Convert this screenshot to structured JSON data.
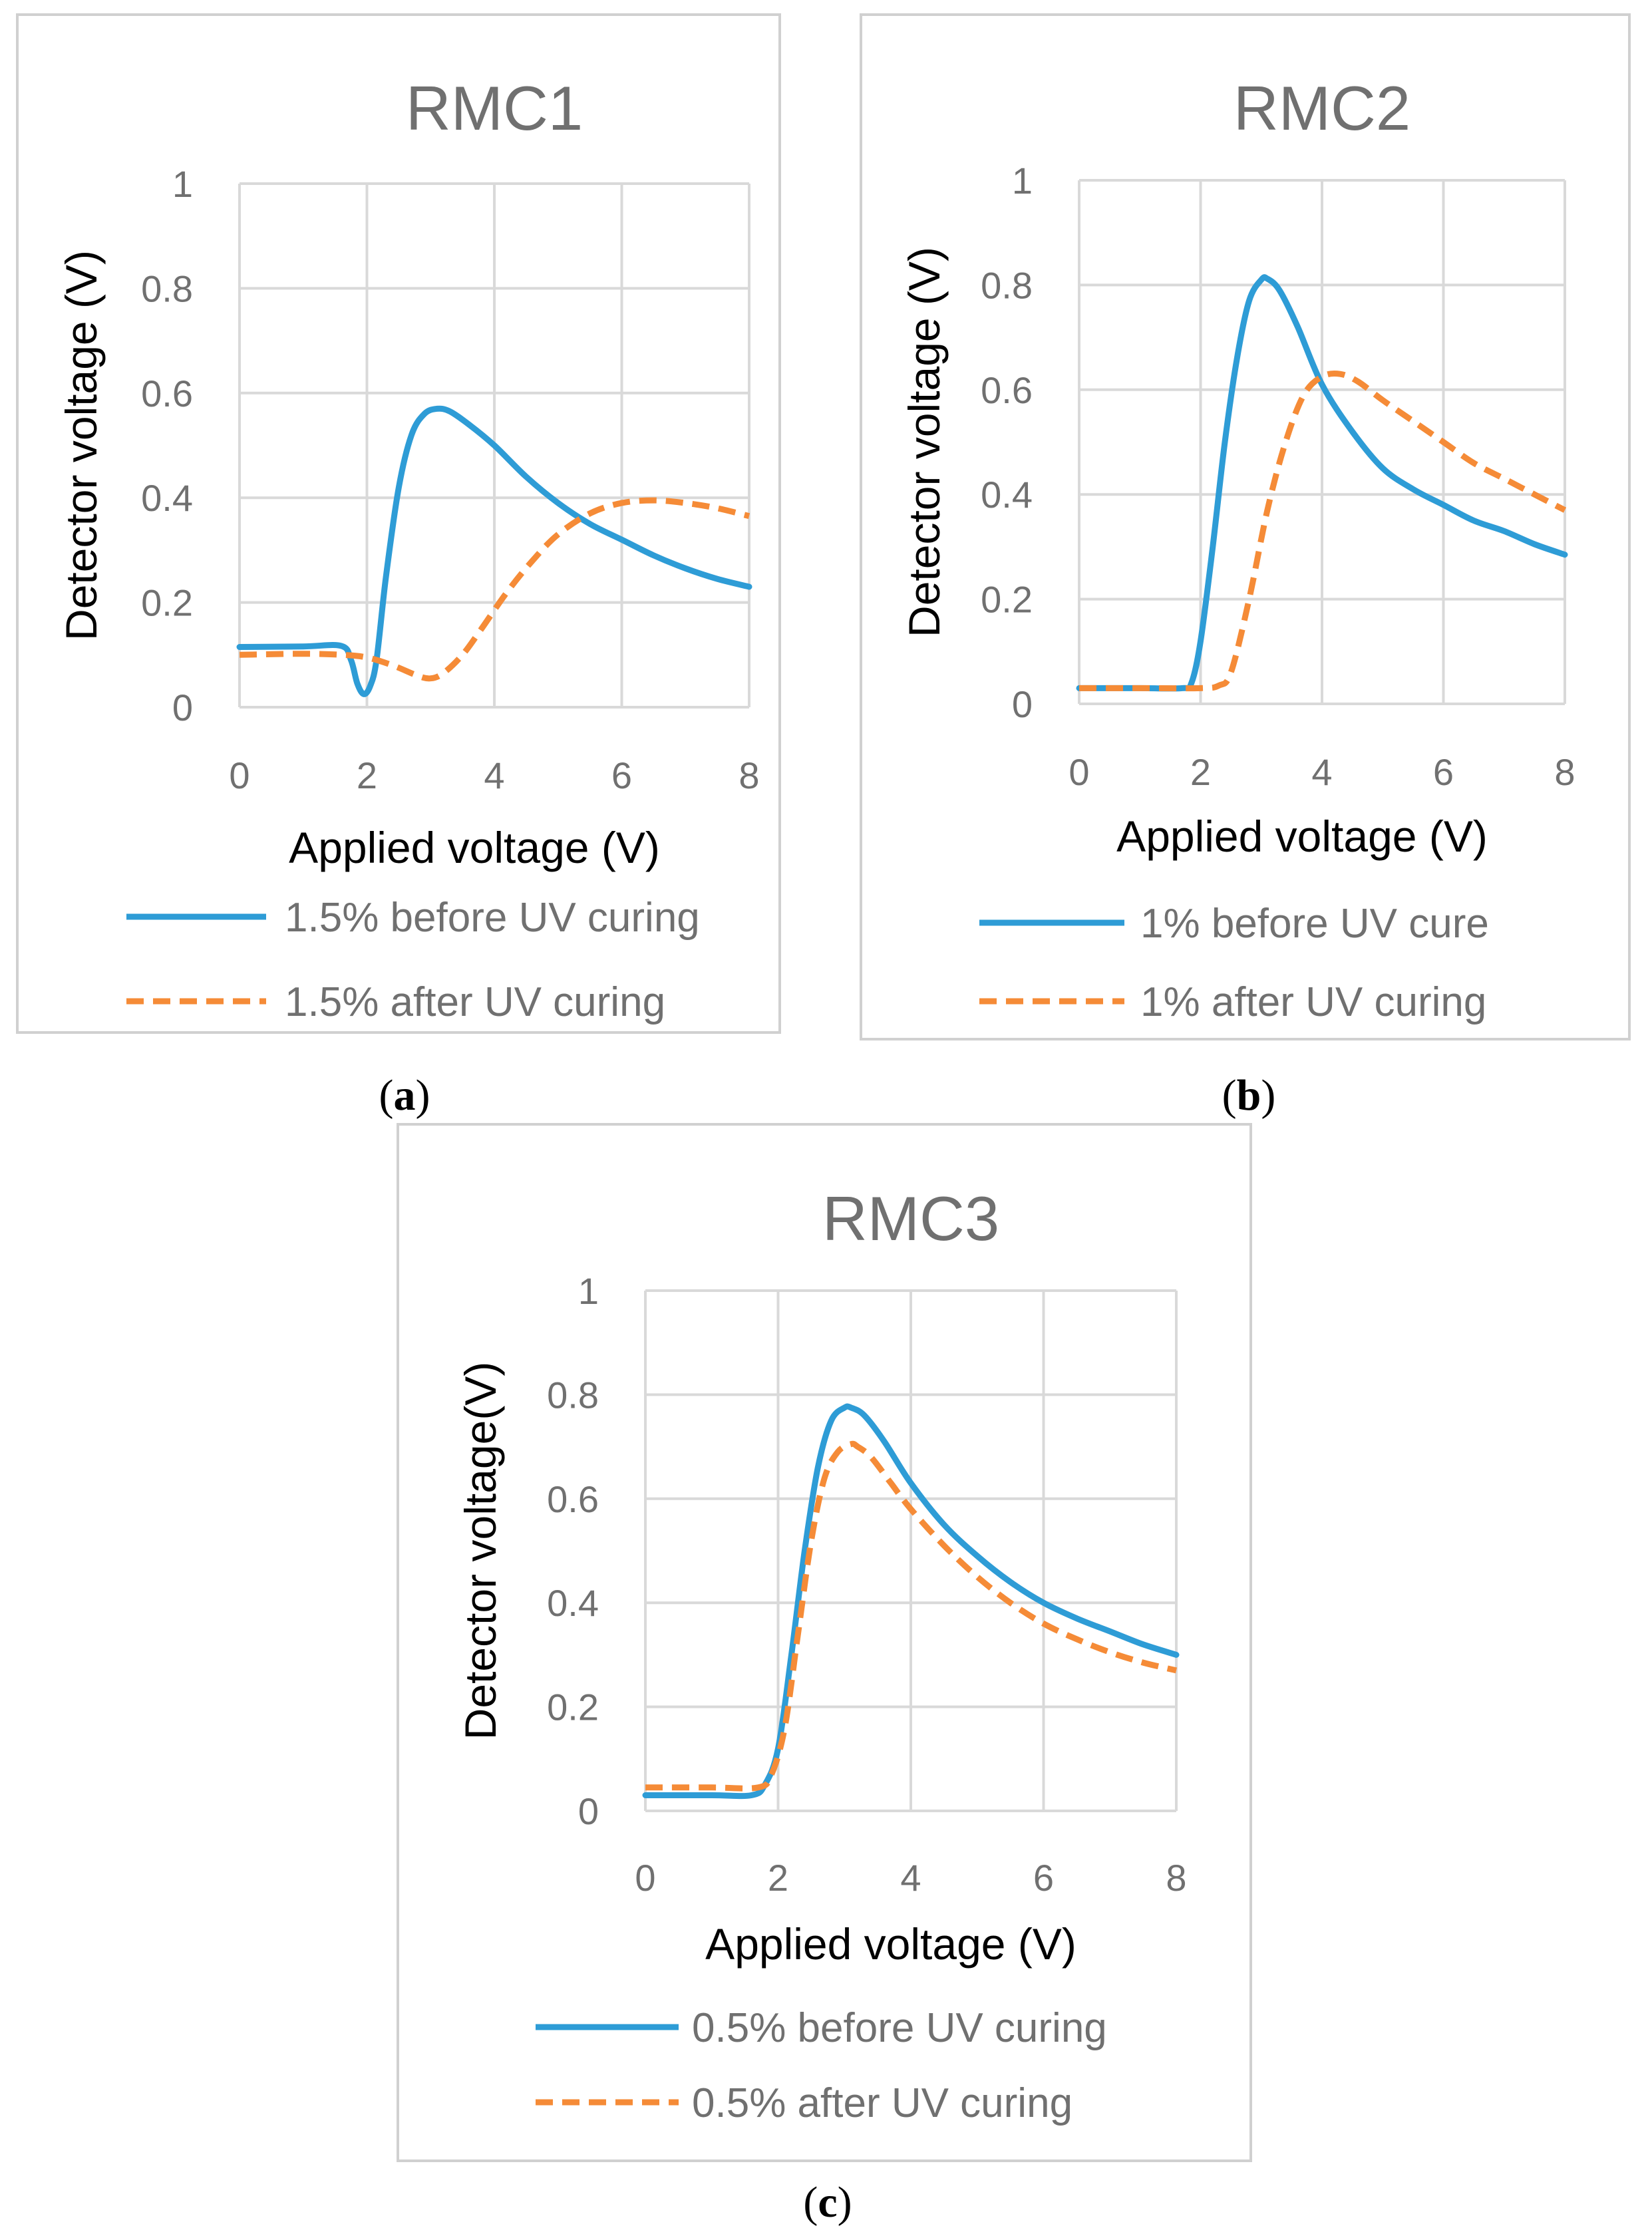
{
  "colors": {
    "before": "#2E9CD6",
    "after": "#F58B37",
    "grid": "#D9D9D9",
    "frame": "#D0D0D0"
  },
  "chart_data": [
    {
      "panel": "a",
      "type": "line",
      "title": "RMC1",
      "xlabel": "Applied voltage (V)",
      "ylabel": "Detector voltage (V)",
      "xlim": [
        0,
        8
      ],
      "ylim": [
        0,
        1
      ],
      "xticks": [
        "0",
        "2",
        "4",
        "6",
        "8"
      ],
      "yticks": [
        "0",
        "0.2",
        "0.4",
        "0.6",
        "0.8",
        "1"
      ],
      "series": [
        {
          "name": "1.5% before UV curing",
          "style": "solid",
          "x": [
            0,
            1.0,
            1.6,
            1.75,
            1.85,
            1.95,
            2.05,
            2.15,
            2.3,
            2.5,
            2.7,
            2.9,
            3.1,
            3.3,
            3.6,
            4.0,
            4.5,
            5.0,
            5.5,
            6.0,
            6.5,
            7.0,
            7.5,
            8.0
          ],
          "y": [
            0.115,
            0.116,
            0.117,
            0.09,
            0.045,
            0.025,
            0.04,
            0.09,
            0.25,
            0.42,
            0.52,
            0.56,
            0.57,
            0.565,
            0.54,
            0.5,
            0.44,
            0.39,
            0.35,
            0.32,
            0.29,
            0.265,
            0.245,
            0.23
          ]
        },
        {
          "name": "1.5% after UV curing",
          "style": "dashed",
          "x": [
            0,
            1.0,
            1.6,
            2.0,
            2.4,
            2.8,
            3.0,
            3.2,
            3.5,
            3.8,
            4.2,
            4.6,
            5.0,
            5.5,
            6.0,
            6.5,
            7.0,
            7.5,
            8.0
          ],
          "y": [
            0.1,
            0.102,
            0.1,
            0.095,
            0.08,
            0.06,
            0.055,
            0.065,
            0.1,
            0.15,
            0.22,
            0.28,
            0.33,
            0.37,
            0.39,
            0.395,
            0.39,
            0.38,
            0.365
          ]
        }
      ],
      "panel_label": "a"
    },
    {
      "panel": "b",
      "type": "line",
      "title": "RMC2",
      "xlabel": "Applied voltage (V)",
      "ylabel": "Detector voltage (V)",
      "xlim": [
        0,
        8
      ],
      "ylim": [
        0,
        1
      ],
      "xticks": [
        "0",
        "2",
        "4",
        "6",
        "8"
      ],
      "yticks": [
        "0",
        "0.2",
        "0.4",
        "0.6",
        "0.8",
        "1"
      ],
      "series": [
        {
          "name": "1% before UV cure",
          "style": "solid",
          "x": [
            0,
            1.0,
            1.7,
            1.85,
            2.0,
            2.2,
            2.4,
            2.6,
            2.8,
            3.0,
            3.1,
            3.3,
            3.6,
            4.0,
            4.5,
            5.0,
            5.5,
            6.0,
            6.5,
            7.0,
            7.5,
            8.0
          ],
          "y": [
            0.03,
            0.03,
            0.03,
            0.04,
            0.12,
            0.3,
            0.5,
            0.66,
            0.77,
            0.81,
            0.812,
            0.79,
            0.72,
            0.61,
            0.52,
            0.45,
            0.41,
            0.38,
            0.35,
            0.33,
            0.305,
            0.285
          ]
        },
        {
          "name": "1% after UV curing",
          "style": "dashed",
          "x": [
            0,
            1.0,
            2.0,
            2.3,
            2.5,
            2.8,
            3.1,
            3.4,
            3.7,
            4.0,
            4.3,
            4.6,
            5.0,
            5.5,
            6.0,
            6.5,
            7.0,
            7.5,
            8.0
          ],
          "y": [
            0.03,
            0.03,
            0.03,
            0.035,
            0.06,
            0.2,
            0.37,
            0.5,
            0.59,
            0.625,
            0.63,
            0.615,
            0.58,
            0.54,
            0.5,
            0.46,
            0.43,
            0.4,
            0.37
          ]
        }
      ],
      "panel_label": "b"
    },
    {
      "panel": "c",
      "type": "line",
      "title": "RMC3",
      "xlabel": "Applied voltage (V)",
      "ylabel": "Detector voltage(V)",
      "xlim": [
        0,
        8
      ],
      "ylim": [
        0,
        1
      ],
      "xticks": [
        "0",
        "2",
        "4",
        "6",
        "8"
      ],
      "yticks": [
        "0",
        "0.2",
        "0.4",
        "0.6",
        "0.8",
        "1"
      ],
      "series": [
        {
          "name": "0.5% before UV curing",
          "style": "solid",
          "x": [
            0,
            1.0,
            1.6,
            1.8,
            2.0,
            2.2,
            2.4,
            2.6,
            2.8,
            3.0,
            3.1,
            3.3,
            3.6,
            4.0,
            4.5,
            5.0,
            5.5,
            6.0,
            6.5,
            7.0,
            7.5,
            8.0
          ],
          "y": [
            0.03,
            0.03,
            0.03,
            0.05,
            0.12,
            0.3,
            0.5,
            0.66,
            0.75,
            0.775,
            0.775,
            0.76,
            0.71,
            0.63,
            0.55,
            0.49,
            0.44,
            0.4,
            0.37,
            0.345,
            0.32,
            0.3
          ]
        },
        {
          "name": "0.5% after UV curing",
          "style": "dashed",
          "x": [
            0,
            1.0,
            1.7,
            1.9,
            2.1,
            2.3,
            2.5,
            2.7,
            2.9,
            3.1,
            3.2,
            3.4,
            3.7,
            4.0,
            4.5,
            5.0,
            5.5,
            6.0,
            6.5,
            7.0,
            7.5,
            8.0
          ],
          "y": [
            0.045,
            0.045,
            0.045,
            0.07,
            0.16,
            0.34,
            0.52,
            0.64,
            0.69,
            0.705,
            0.7,
            0.68,
            0.63,
            0.58,
            0.51,
            0.45,
            0.4,
            0.36,
            0.33,
            0.305,
            0.285,
            0.27
          ]
        }
      ],
      "panel_label": "c"
    }
  ]
}
